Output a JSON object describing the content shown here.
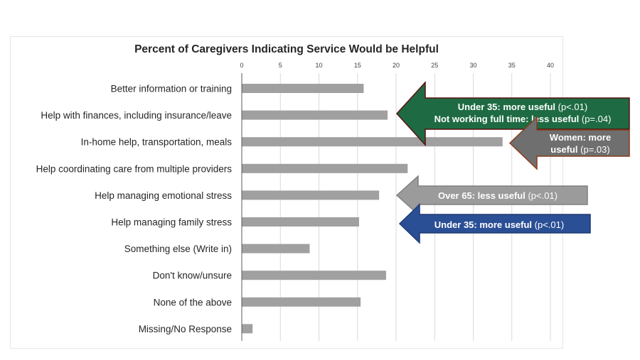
{
  "chart_data": {
    "type": "bar",
    "orientation": "horizontal",
    "title": "Percent of Caregivers Indicating Service Would be Helpful",
    "categories": [
      "Better information or training",
      "Help with finances, including insurance/leave",
      "In-home help, transportation, meals",
      "Help coordinating care from multiple providers",
      "Help managing emotional stress",
      "Help managing family stress",
      "Something else (Write in)",
      "Don't know/unsure",
      "None of the above",
      "Missing/No Response"
    ],
    "values": [
      15.8,
      18.9,
      33.8,
      21.5,
      17.8,
      15.2,
      8.8,
      18.7,
      15.4,
      1.4
    ],
    "ticks": [
      0,
      5,
      10,
      15,
      20,
      25,
      30,
      35,
      40
    ],
    "xlim": [
      0,
      40
    ],
    "grid": true,
    "bar_color": "#a0a0a0",
    "xlabel": "",
    "ylabel": "",
    "annotations": [
      {
        "id": "finances",
        "target_category": "Help with finances, including insurance/leave",
        "lines": [
          {
            "bold": "Under 35: more useful",
            "plain": " (p<.01)"
          },
          {
            "bold": "Not working full time: less useful",
            "plain": " (p=.04)"
          }
        ],
        "fill": "#1e6b43",
        "stroke": "#5a1010"
      },
      {
        "id": "inhome",
        "target_category": "In-home help, transportation, meals",
        "lines": [
          {
            "bold": "Women: more",
            "plain": ""
          },
          {
            "bold": "useful",
            "plain": " (p=.03)"
          }
        ],
        "fill": "#6f6f6f",
        "stroke": "#8a3a1a"
      },
      {
        "id": "emotional",
        "target_category": "Help managing emotional stress",
        "lines": [
          {
            "bold": "Over 65: less useful",
            "plain": " (p<.01)"
          }
        ],
        "fill": "#9b9b9b",
        "stroke": "#808080"
      },
      {
        "id": "family",
        "target_category": "Help managing family stress",
        "lines": [
          {
            "bold": "Under 35: more useful",
            "plain": " (p<.01)"
          }
        ],
        "fill": "#2b4f95",
        "stroke": "#1d3a73"
      }
    ]
  }
}
